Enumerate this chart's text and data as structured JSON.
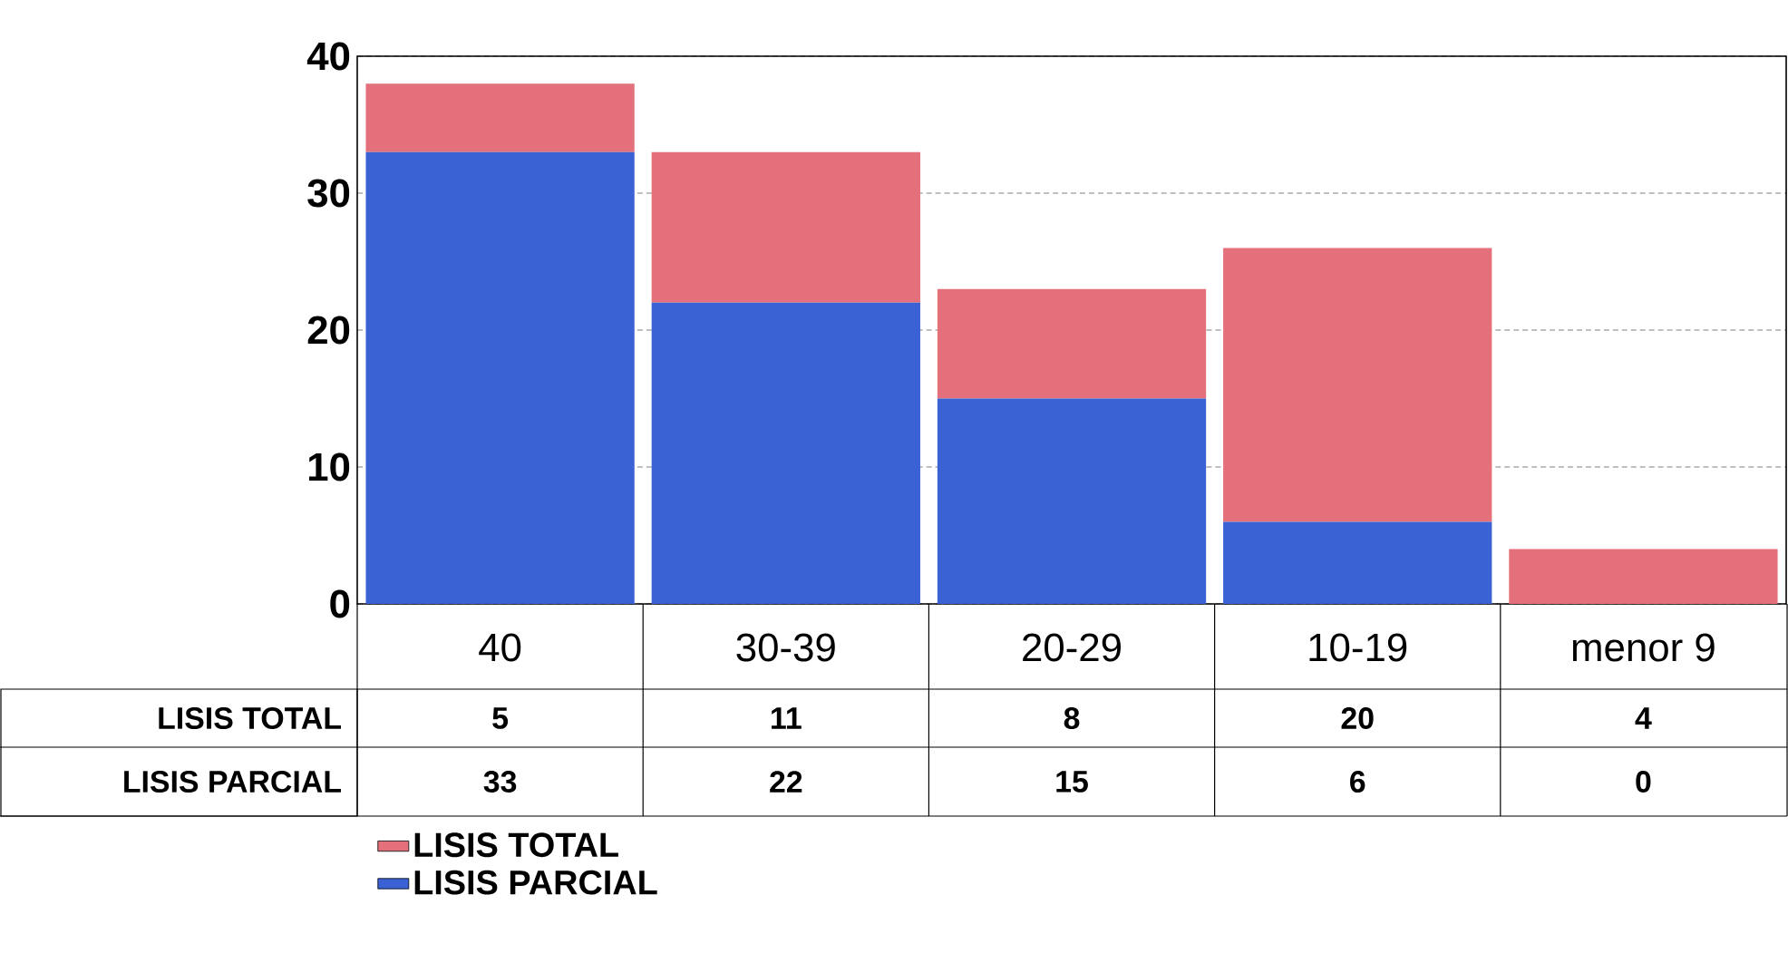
{
  "chart_data": {
    "type": "bar",
    "stacked": true,
    "categories": [
      "40",
      "30-39",
      "20-29",
      "10-19",
      "menor 9"
    ],
    "series": [
      {
        "name": "LISIS PARCIAL",
        "color": "#3a62d4",
        "values": [
          33,
          22,
          15,
          6,
          0
        ]
      },
      {
        "name": "LISIS TOTAL",
        "color": "#e3707a",
        "values": [
          5,
          11,
          8,
          20,
          4
        ]
      }
    ],
    "ylim": [
      0,
      40
    ],
    "yticks": [
      0,
      10,
      20,
      30,
      40
    ],
    "grid": "y",
    "legend": "bottom",
    "data_labels": true
  }
}
